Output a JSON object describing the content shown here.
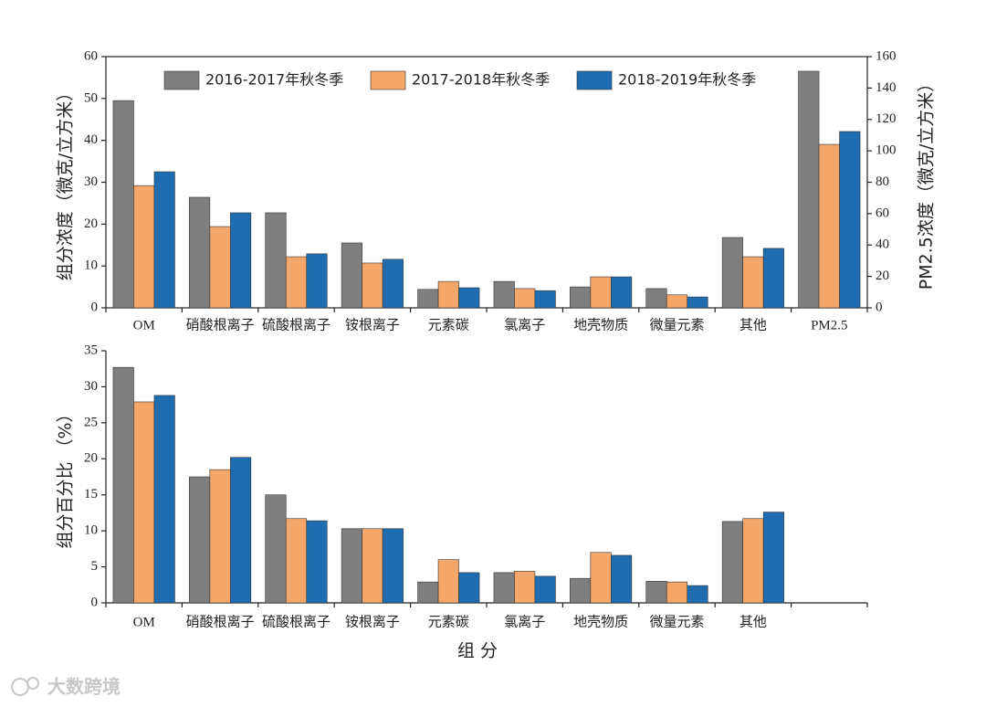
{
  "chart_data": [
    {
      "type": "bar",
      "y_label": "组分浓度（微克/立方米）",
      "y2_label": "PM2.5浓度（微克/立方米）",
      "categories": [
        "OM",
        "硝酸根离子",
        "硫酸根离子",
        "铵根离子",
        "元素碳",
        "氯离子",
        "地壳物质",
        "微量元素",
        "其他",
        "PM2.5"
      ],
      "category_axis": [
        "y",
        "y",
        "y",
        "y",
        "y",
        "y",
        "y",
        "y",
        "y",
        "y2"
      ],
      "series": [
        {
          "name": "2016-2017年秋冬季",
          "color": "#7f7f7f",
          "values": [
            49.5,
            26.4,
            22.7,
            15.5,
            4.4,
            6.3,
            5.0,
            4.6,
            16.8,
            150.7
          ]
        },
        {
          "name": "2017-2018年秋冬季",
          "color": "#f3a76a",
          "values": [
            29.2,
            19.4,
            12.2,
            10.7,
            6.3,
            4.6,
            7.4,
            3.1,
            12.2,
            104.1
          ]
        },
        {
          "name": "2018-2019年秋冬季",
          "color": "#1f6cb0",
          "values": [
            32.5,
            22.7,
            12.9,
            11.6,
            4.8,
            4.1,
            7.4,
            2.6,
            14.2,
            112.3
          ]
        }
      ],
      "ylim": [
        0,
        60
      ],
      "yticks": [
        0,
        10,
        20,
        30,
        40,
        50,
        60
      ],
      "y2lim": [
        0,
        160
      ],
      "y2ticks": [
        0,
        20,
        40,
        60,
        80,
        100,
        120,
        140,
        160
      ],
      "legend": "upper center"
    },
    {
      "type": "bar",
      "y_label": "组分百分比 （%）",
      "x_label": "组 分",
      "categories": [
        "OM",
        "硝酸根离子",
        "硫酸根离子",
        "铵根离子",
        "元素碳",
        "氯离子",
        "地壳物质",
        "微量元素",
        "其他",
        null
      ],
      "series": [
        {
          "color": "#7f7f7f",
          "values": [
            32.7,
            17.5,
            15.0,
            10.3,
            2.9,
            4.2,
            3.4,
            3.0,
            11.3,
            null
          ]
        },
        {
          "color": "#f3a76a",
          "values": [
            27.9,
            18.5,
            11.7,
            10.3,
            6.0,
            4.4,
            7.0,
            2.9,
            11.7,
            null
          ]
        },
        {
          "color": "#1f6cb0",
          "values": [
            28.8,
            20.2,
            11.4,
            10.3,
            4.2,
            3.7,
            6.6,
            2.4,
            12.6,
            null
          ]
        }
      ],
      "ylim": [
        0,
        35
      ],
      "yticks": [
        0,
        5,
        10,
        15,
        20,
        25,
        30,
        35
      ]
    }
  ],
  "watermark": "大数跨境"
}
